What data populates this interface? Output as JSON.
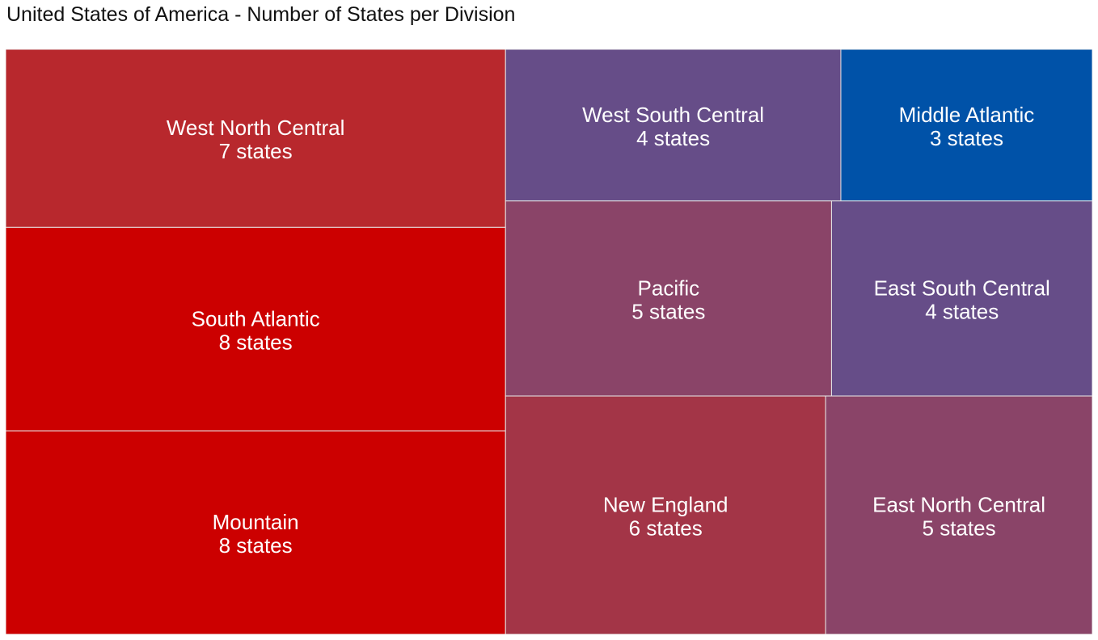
{
  "chart_data": {
    "type": "treemap",
    "title": "United States of America - Number of States per Division",
    "unit_label": "states",
    "items": [
      {
        "name": "West North Central",
        "value": 7,
        "label": "7 states",
        "color": "#b8282d"
      },
      {
        "name": "South Atlantic",
        "value": 8,
        "label": "8 states",
        "color": "#cc0000"
      },
      {
        "name": "Mountain",
        "value": 8,
        "label": "8 states",
        "color": "#cc0000"
      },
      {
        "name": "West South Central",
        "value": 4,
        "label": "4 states",
        "color": "#664d88"
      },
      {
        "name": "Middle Atlantic",
        "value": 3,
        "label": "3 states",
        "color": "#0052a8"
      },
      {
        "name": "Pacific",
        "value": 5,
        "label": "5 states",
        "color": "#8a4468"
      },
      {
        "name": "East South Central",
        "value": 4,
        "label": "4 states",
        "color": "#664d88"
      },
      {
        "name": "New England",
        "value": 6,
        "label": "6 states",
        "color": "#a33547"
      },
      {
        "name": "East North Central",
        "value": 5,
        "label": "5 states",
        "color": "#8a4468"
      }
    ]
  }
}
